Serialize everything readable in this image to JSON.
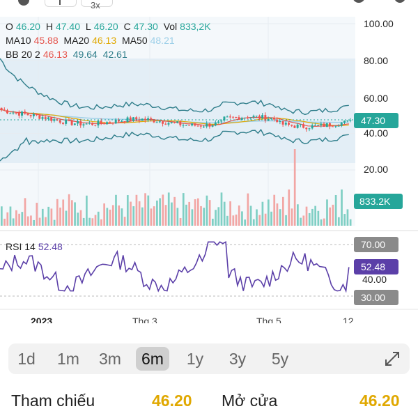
{
  "top_toolbar": {
    "partial_label": "3x"
  },
  "legend": {
    "ohlc": {
      "o_label": "O",
      "o_value": "46.20",
      "h_label": "H",
      "h_value": "47.40",
      "l_label": "L",
      "l_value": "46.20",
      "c_label": "C",
      "c_value": "47.30",
      "vol_label": "Vol",
      "vol_value": "833,2K"
    },
    "ma": {
      "ma10_label": "MA10",
      "ma10_value": "45.88",
      "ma20_label": "MA20",
      "ma20_value": "46.13",
      "ma50_label": "MA50",
      "ma50_value": "48.21"
    },
    "bb": {
      "label": "BB 20 2",
      "mid": "46.13",
      "upper": "49.64",
      "lower": "42.61"
    },
    "rsi": {
      "label": "RSI 14",
      "value": "52.48"
    }
  },
  "colors": {
    "up": "#26a69a",
    "down": "#ef5350",
    "ma10": "#e5534b",
    "ma20": "#e0a800",
    "ma50": "#9ccfe8",
    "bb": "#2e7d8a",
    "rsi": "#5b3fa8",
    "accent_gold": "#e0a800"
  },
  "price_axis": {
    "ticks": [
      "100.00",
      "80.00",
      "60.00",
      "40.00",
      "20.00"
    ],
    "current_price_badge": "47.30",
    "volume_badge": "833.2K"
  },
  "rsi_axis": {
    "upper_badge": "70.00",
    "value_badge": "52.48",
    "mid_label": "40.00",
    "lower_badge": "30.00"
  },
  "time_axis": [
    "2023",
    "Thg 3",
    "Thg 5",
    "12"
  ],
  "range_tabs": {
    "items": [
      "1d",
      "1m",
      "3m",
      "6m",
      "1y",
      "3y",
      "5y"
    ],
    "selected": "6m"
  },
  "info_row": {
    "ref_label": "Tham chiếu",
    "ref_value": "46.20",
    "open_label": "Mở cửa",
    "open_value": "46.20"
  },
  "chart_data": {
    "type": "candlestick",
    "y_range": [
      20,
      100
    ],
    "last_close": 47.3,
    "rsi_last": 52.48,
    "rsi_bounds": [
      30,
      70
    ]
  }
}
